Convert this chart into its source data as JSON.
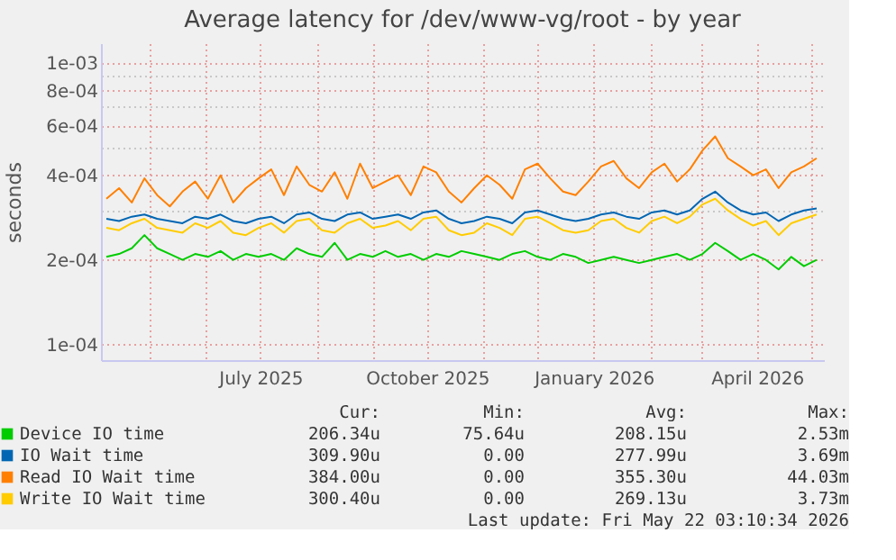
{
  "chart_data": {
    "type": "line",
    "title": "Average latency for /dev/www-vg/root - by year",
    "ylabel": "seconds",
    "x": [
      "2025-04-07",
      "2025-04-14",
      "2025-04-21",
      "2025-04-28",
      "2025-05-05",
      "2025-05-12",
      "2025-05-19",
      "2025-05-26",
      "2025-06-02",
      "2025-06-09",
      "2025-06-16",
      "2025-06-23",
      "2025-06-30",
      "2025-07-07",
      "2025-07-14",
      "2025-07-21",
      "2025-07-28",
      "2025-08-04",
      "2025-08-11",
      "2025-08-18",
      "2025-08-25",
      "2025-09-01",
      "2025-09-08",
      "2025-09-15",
      "2025-09-22",
      "2025-09-29",
      "2025-10-06",
      "2025-10-13",
      "2025-10-20",
      "2025-10-27",
      "2025-11-03",
      "2025-11-10",
      "2025-11-17",
      "2025-11-24",
      "2025-12-01",
      "2025-12-08",
      "2025-12-15",
      "2025-12-22",
      "2025-12-29",
      "2026-01-05",
      "2026-01-12",
      "2026-01-19",
      "2026-01-26",
      "2026-02-02",
      "2026-02-09",
      "2026-02-16",
      "2026-02-23",
      "2026-03-02",
      "2026-03-09",
      "2026-03-16",
      "2026-03-23",
      "2026-03-30",
      "2026-04-06",
      "2026-04-13",
      "2026-04-20",
      "2026-04-27",
      "2026-05-04"
    ],
    "series": [
      {
        "name": "Device IO time",
        "color": "#00cc00",
        "values": [
          0.000205,
          0.00021,
          0.00022,
          0.000245,
          0.00022,
          0.00021,
          0.0002,
          0.00021,
          0.000205,
          0.000215,
          0.0002,
          0.00021,
          0.000205,
          0.00021,
          0.0002,
          0.00022,
          0.00021,
          0.000205,
          0.00023,
          0.0002,
          0.00021,
          0.000205,
          0.000215,
          0.000205,
          0.00021,
          0.0002,
          0.00021,
          0.000205,
          0.000215,
          0.00021,
          0.000205,
          0.0002,
          0.00021,
          0.000215,
          0.000205,
          0.0002,
          0.00021,
          0.000205,
          0.000195,
          0.0002,
          0.000205,
          0.0002,
          0.000195,
          0.0002,
          0.000205,
          0.00021,
          0.0002,
          0.00021,
          0.00023,
          0.000215,
          0.0002,
          0.00021,
          0.0002,
          0.000185,
          0.000205,
          0.00019,
          0.0002
        ]
      },
      {
        "name": "IO Wait time",
        "color": "#0066b3",
        "values": [
          0.00028,
          0.000275,
          0.000285,
          0.00029,
          0.00028,
          0.000275,
          0.00027,
          0.000285,
          0.00028,
          0.00029,
          0.000275,
          0.00027,
          0.00028,
          0.000285,
          0.00027,
          0.00029,
          0.000295,
          0.00028,
          0.000275,
          0.00029,
          0.000295,
          0.00028,
          0.000285,
          0.00029,
          0.00028,
          0.000295,
          0.0003,
          0.00028,
          0.00027,
          0.000275,
          0.000285,
          0.00028,
          0.00027,
          0.000295,
          0.0003,
          0.00029,
          0.00028,
          0.000275,
          0.00028,
          0.00029,
          0.000295,
          0.000285,
          0.00028,
          0.000295,
          0.0003,
          0.00029,
          0.0003,
          0.00033,
          0.00035,
          0.00032,
          0.0003,
          0.00029,
          0.000295,
          0.000275,
          0.00029,
          0.0003,
          0.000305
        ]
      },
      {
        "name": "Read IO Wait time",
        "color": "#ff8000",
        "values": [
          0.00033,
          0.00036,
          0.00032,
          0.00039,
          0.00034,
          0.00031,
          0.00035,
          0.00038,
          0.00033,
          0.0004,
          0.00032,
          0.00036,
          0.00039,
          0.00042,
          0.00034,
          0.00043,
          0.00037,
          0.00035,
          0.00041,
          0.00033,
          0.00044,
          0.00036,
          0.00038,
          0.0004,
          0.00034,
          0.00043,
          0.00041,
          0.00035,
          0.00032,
          0.00036,
          0.0004,
          0.00037,
          0.00033,
          0.00042,
          0.00044,
          0.00039,
          0.00035,
          0.00034,
          0.00038,
          0.00043,
          0.00045,
          0.00039,
          0.00036,
          0.00041,
          0.00044,
          0.00038,
          0.00042,
          0.00049,
          0.00055,
          0.00046,
          0.00043,
          0.0004,
          0.00042,
          0.00036,
          0.00041,
          0.00043,
          0.00046
        ]
      },
      {
        "name": "Write IO Wait time",
        "color": "#ffcc00",
        "values": [
          0.00026,
          0.000255,
          0.00027,
          0.00028,
          0.00026,
          0.000255,
          0.00025,
          0.00027,
          0.00026,
          0.000275,
          0.00025,
          0.000245,
          0.00026,
          0.00027,
          0.00025,
          0.000275,
          0.00028,
          0.000255,
          0.00025,
          0.00027,
          0.00028,
          0.00026,
          0.000265,
          0.000275,
          0.000255,
          0.00028,
          0.000285,
          0.000255,
          0.000245,
          0.00025,
          0.00027,
          0.00026,
          0.000245,
          0.00028,
          0.000285,
          0.00027,
          0.000255,
          0.00025,
          0.000255,
          0.000275,
          0.00028,
          0.00026,
          0.00025,
          0.000275,
          0.000285,
          0.00027,
          0.000285,
          0.000315,
          0.00033,
          0.0003,
          0.00028,
          0.000265,
          0.000275,
          0.000245,
          0.00027,
          0.00028,
          0.00029
        ]
      }
    ],
    "xlim": [
      "2025-04-04",
      "2026-05-08"
    ],
    "xticks": [
      {
        "value": "2025-05-01",
        "label": null
      },
      {
        "value": "2025-06-01",
        "label": null
      },
      {
        "value": "2025-07-01",
        "label": "July 2025"
      },
      {
        "value": "2025-08-01",
        "label": null
      },
      {
        "value": "2025-09-01",
        "label": null
      },
      {
        "value": "2025-10-01",
        "label": "October 2025"
      },
      {
        "value": "2025-11-01",
        "label": null
      },
      {
        "value": "2025-12-01",
        "label": null
      },
      {
        "value": "2026-01-01",
        "label": "January 2026"
      },
      {
        "value": "2026-02-01",
        "label": null
      },
      {
        "value": "2026-03-01",
        "label": null
      },
      {
        "value": "2026-04-01",
        "label": "April 2026"
      },
      {
        "value": "2026-05-01",
        "label": null
      }
    ],
    "log": "y",
    "ylim": [
      8.8e-05,
      0.00118
    ],
    "yticks": [
      {
        "value": 0.0001,
        "label": "1e-04"
      },
      {
        "value": 0.0002,
        "label": "2e-04"
      },
      {
        "value": 0.0003,
        "label": null
      },
      {
        "value": 0.0004,
        "label": "4e-04"
      },
      {
        "value": 0.0005,
        "label": null
      },
      {
        "value": 0.0006,
        "label": "6e-04"
      },
      {
        "value": 0.0007,
        "label": null
      },
      {
        "value": 0.0008,
        "label": "8e-04"
      },
      {
        "value": 0.0009,
        "label": null
      },
      {
        "value": 0.001,
        "label": "1e-03"
      }
    ],
    "grid": true,
    "legend": "bottom",
    "line_style": "solid",
    "annotations": [
      "Cur: Min: Avg: Max:",
      "206.34u 75.64u 208.15u 2.53m",
      "309.90u 0.00 277.99u 3.69m",
      "384.00u 0.00 355.30u 44.03m",
      "300.40u 0.00 269.13u 3.73m",
      "Last update: Fri May 22 03:10:34 2026"
    ]
  }
}
